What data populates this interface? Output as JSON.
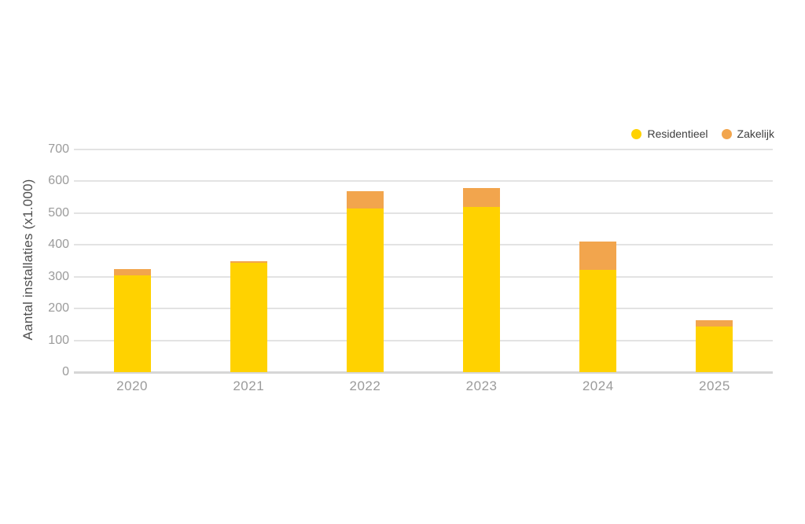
{
  "chart_data": {
    "type": "bar",
    "stacked": true,
    "title": "",
    "xlabel": "",
    "ylabel": "Aantal installaties (x1.000)",
    "categories": [
      "2020",
      "2021",
      "2022",
      "2023",
      "2024",
      "2025"
    ],
    "series": [
      {
        "name": "Residentieel",
        "color": "#FFD200",
        "values": [
          305,
          343,
          514,
          520,
          322,
          144
        ]
      },
      {
        "name": "Zakelijk",
        "color": "#F2A54D",
        "values": [
          20,
          5,
          56,
          58,
          88,
          19
        ]
      }
    ],
    "ylim": [
      0,
      700
    ],
    "yticks": [
      0,
      100,
      200,
      300,
      400,
      500,
      600,
      700
    ],
    "grid": true,
    "legend_position": "top-right",
    "colors": {
      "residentieel": "#FFD200",
      "zakelijk": "#F2A54D",
      "gridline": "#E3E3E3",
      "axis_line": "#D6D6D6",
      "tick_text": "#9B9B9B",
      "axis_title_text": "#4F4F4F",
      "legend_text": "#3E3E3E",
      "background": "#FFFFFF"
    }
  }
}
